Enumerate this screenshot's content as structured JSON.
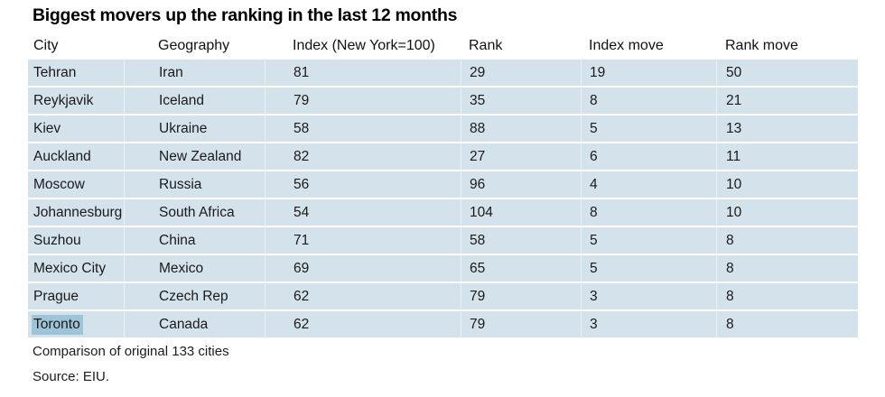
{
  "title": "Biggest movers up the ranking in the last 12 months",
  "footnote": "Comparison of original 133 cities",
  "source": "Source: EIU.",
  "colors": {
    "page-bg": "#ffffff",
    "row-bg": "#d4e2ec",
    "selection-bg": "#9ec4d7",
    "separator": "#eaf1f6",
    "text-color": "#1a1a1a"
  },
  "table": {
    "headers": [
      "City",
      "Geography",
      "Index (New York=100)",
      "Rank",
      "Index move",
      "Rank move"
    ],
    "rows": [
      {
        "city": "Tehran",
        "geography": "Iran",
        "index": "81",
        "rank": "29",
        "index_move": "19",
        "rank_move": "50"
      },
      {
        "city": "Reykjavik",
        "geography": "Iceland",
        "index": "79",
        "rank": "35",
        "index_move": "8",
        "rank_move": "21"
      },
      {
        "city": "Kiev",
        "geography": "Ukraine",
        "index": "58",
        "rank": "88",
        "index_move": "5",
        "rank_move": "13"
      },
      {
        "city": "Auckland",
        "geography": "New Zealand",
        "index": "82",
        "rank": "27",
        "index_move": "6",
        "rank_move": "11"
      },
      {
        "city": "Moscow",
        "geography": "Russia",
        "index": "56",
        "rank": "96",
        "index_move": "4",
        "rank_move": "10"
      },
      {
        "city": "Johannesburg",
        "geography": "South Africa",
        "index": "54",
        "rank": "104",
        "index_move": "8",
        "rank_move": "10"
      },
      {
        "city": "Suzhou",
        "geography": "China",
        "index": "71",
        "rank": "58",
        "index_move": "5",
        "rank_move": "8"
      },
      {
        "city": "Mexico City",
        "geography": "Mexico",
        "index": "69",
        "rank": "65",
        "index_move": "5",
        "rank_move": "8"
      },
      {
        "city": "Prague",
        "geography": "Czech Rep",
        "index": "62",
        "rank": "79",
        "index_move": "3",
        "rank_move": "8"
      },
      {
        "city": "Toronto",
        "geography": "Canada",
        "index": "62",
        "rank": "79",
        "index_move": "3",
        "rank_move": "8"
      }
    ],
    "selected_city": "Toronto"
  },
  "chart_data": {
    "type": "table",
    "title": "Biggest movers up the ranking in the last 12 months",
    "columns": [
      "City",
      "Geography",
      "Index (New York=100)",
      "Rank",
      "Index move",
      "Rank move"
    ],
    "rows": [
      [
        "Tehran",
        "Iran",
        81,
        29,
        19,
        50
      ],
      [
        "Reykjavik",
        "Iceland",
        79,
        35,
        8,
        21
      ],
      [
        "Kiev",
        "Ukraine",
        58,
        88,
        5,
        13
      ],
      [
        "Auckland",
        "New Zealand",
        82,
        27,
        6,
        11
      ],
      [
        "Moscow",
        "Russia",
        56,
        96,
        4,
        10
      ],
      [
        "Johannesburg",
        "South Africa",
        54,
        104,
        8,
        10
      ],
      [
        "Suzhou",
        "China",
        71,
        58,
        5,
        8
      ],
      [
        "Mexico City",
        "Mexico",
        69,
        65,
        5,
        8
      ],
      [
        "Prague",
        "Czech Rep",
        62,
        79,
        3,
        8
      ],
      [
        "Toronto",
        "Canada",
        62,
        79,
        3,
        8
      ]
    ],
    "notes": "Comparison of original 133 cities",
    "source": "Source: EIU."
  }
}
